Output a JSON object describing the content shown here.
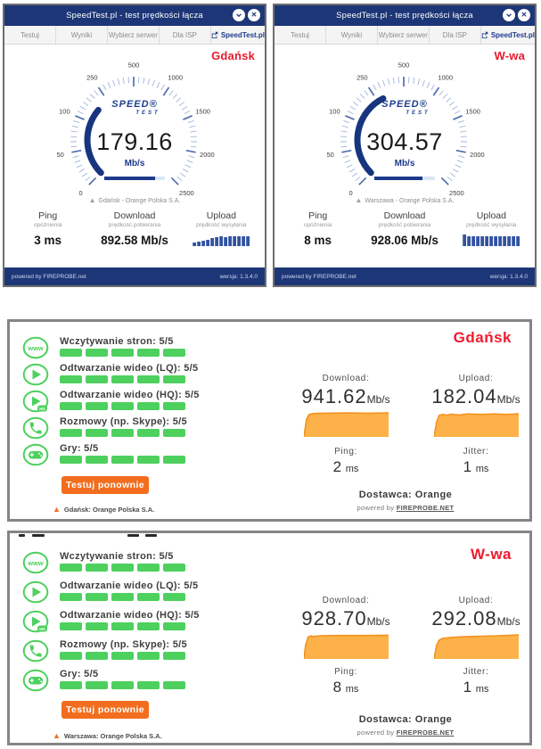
{
  "colors": {
    "navy": "#1d3677",
    "accent_navy": "#1d3a8c",
    "red": "#e8192c",
    "green": "#4dd05e",
    "orange": "#f26d1d",
    "chart_orange_fill": "#fcb249",
    "chart_orange_stroke": "#f39220"
  },
  "speedtest_windows": [
    {
      "title": "SpeedTest.pl - test prędkości łącza",
      "tabs": [
        "Testuj",
        "Wyniki",
        "Wybierz serwer",
        "Dla ISP",
        "SpeedTest.pl"
      ],
      "city_label": "Gdańsk",
      "logo_line1": "SPEED",
      "logo_line2": "TEST",
      "gauge": {
        "value": 179.16,
        "value_display": "179.16",
        "unit": "Mb/s",
        "labels": [
          0,
          50,
          100,
          250,
          500,
          1000,
          1500,
          2000,
          2500
        ],
        "progress_pct": 84
      },
      "server": "Gdańsk - Orange Polska S.A.",
      "stats": {
        "ping_label": "Ping",
        "ping_sub": "opóźnienia",
        "ping_value": "3 ms",
        "download_label": "Download",
        "download_sub": "prędkość pobierania",
        "download_value": "892.58 Mb/s",
        "upload_label": "Upload",
        "upload_sub": "prędkość wysyłania",
        "upload_bars": [
          4,
          5,
          6,
          7,
          9,
          10,
          11,
          10,
          11,
          11,
          11,
          11,
          11
        ]
      },
      "footer_left": "powered by FIREPROBE.net",
      "footer_right": "wersja: 1.3.4.0"
    },
    {
      "title": "SpeedTest.pl - test prędkości łącza",
      "tabs": [
        "Testuj",
        "Wyniki",
        "Wybierz serwer",
        "Dla ISP",
        "SpeedTest.pl"
      ],
      "city_label": "W-wa",
      "logo_line1": "SPEED",
      "logo_line2": "TEST",
      "gauge": {
        "value": 304.57,
        "value_display": "304.57",
        "unit": "Mb/s",
        "labels": [
          0,
          50,
          100,
          250,
          500,
          1000,
          1500,
          2000,
          2500
        ],
        "progress_pct": 80
      },
      "server": "Warszawa - Orange Polska S.A.",
      "stats": {
        "ping_label": "Ping",
        "ping_sub": "opóźnienia",
        "ping_value": "8 ms",
        "download_label": "Download",
        "download_sub": "prędkość pobierania",
        "download_value": "928.06 Mb/s",
        "upload_label": "Upload",
        "upload_sub": "prędkość wysyłania",
        "upload_bars": [
          13,
          11,
          11,
          11,
          11,
          11,
          11,
          11,
          11,
          11,
          11,
          11,
          11
        ]
      },
      "footer_left": "powered by FIREPROBE.net",
      "footer_right": "wersja: 1.3.4.0"
    }
  ],
  "fireprobe_panels": [
    {
      "city_label": "Gdańsk",
      "services": [
        {
          "icon": "www-icon",
          "label": "Wczytywanie stron: 5/5",
          "score": 5,
          "max": 5
        },
        {
          "icon": "play-icon",
          "label": "Odtwarzanie wideo (LQ): 5/5",
          "score": 5,
          "max": 5
        },
        {
          "icon": "play-hd-icon",
          "label": "Odtwarzanie wideo (HQ): 5/5",
          "score": 5,
          "max": 5
        },
        {
          "icon": "phone-icon",
          "label": "Rozmowy (np. Skype): 5/5",
          "score": 5,
          "max": 5
        },
        {
          "icon": "gamepad-icon",
          "label": "Gry: 5/5",
          "score": 5,
          "max": 5
        }
      ],
      "button_label": "Testuj ponownie",
      "server": "Gdańsk: Orange Polska S.A.",
      "download_label": "Download:",
      "download_value": "941.62",
      "upload_label": "Upload:",
      "upload_value": "182.04",
      "unit": "Mb/s",
      "ping_label": "Ping:",
      "ping_value": "2",
      "jitter_label": "Jitter:",
      "jitter_value": "1",
      "ms": "ms",
      "provider": "Dostawca: Orange",
      "powered_prefix": "powered by",
      "powered_link": "FIREPROBE.NET",
      "download_curve": [
        [
          0,
          0
        ],
        [
          3,
          70
        ],
        [
          6,
          90
        ],
        [
          12,
          94
        ],
        [
          25,
          95
        ],
        [
          50,
          96
        ],
        [
          75,
          95
        ],
        [
          100,
          96
        ]
      ],
      "upload_curve": [
        [
          0,
          0
        ],
        [
          3,
          60
        ],
        [
          6,
          86
        ],
        [
          10,
          90
        ],
        [
          15,
          87
        ],
        [
          20,
          91
        ],
        [
          30,
          88
        ],
        [
          40,
          92
        ],
        [
          55,
          90
        ],
        [
          70,
          92
        ],
        [
          85,
          90
        ],
        [
          100,
          93
        ]
      ]
    },
    {
      "city_label": "W-wa",
      "services": [
        {
          "icon": "www-icon",
          "label": "Wczytywanie stron: 5/5",
          "score": 5,
          "max": 5
        },
        {
          "icon": "play-icon",
          "label": "Odtwarzanie wideo (LQ): 5/5",
          "score": 5,
          "max": 5
        },
        {
          "icon": "play-hd-icon",
          "label": "Odtwarzanie wideo (HQ): 5/5",
          "score": 5,
          "max": 5
        },
        {
          "icon": "phone-icon",
          "label": "Rozmowy (np. Skype): 5/5",
          "score": 5,
          "max": 5
        },
        {
          "icon": "gamepad-icon",
          "label": "Gry: 5/5",
          "score": 5,
          "max": 5
        }
      ],
      "button_label": "Testuj ponownie",
      "server": "Warszawa: Orange Polska S.A.",
      "download_label": "Download:",
      "download_value": "928.70",
      "upload_label": "Upload:",
      "upload_value": "292.08",
      "unit": "Mb/s",
      "ping_label": "Ping:",
      "ping_value": "8",
      "jitter_label": "Jitter:",
      "jitter_value": "1",
      "ms": "ms",
      "provider": "Dostawca: Orange",
      "powered_prefix": "powered by",
      "powered_link": "FIREPROBE.NET",
      "download_curve": [
        [
          0,
          0
        ],
        [
          2,
          55
        ],
        [
          5,
          88
        ],
        [
          8,
          92
        ],
        [
          11,
          90
        ],
        [
          20,
          93
        ],
        [
          40,
          94
        ],
        [
          70,
          94
        ],
        [
          100,
          95
        ]
      ],
      "upload_curve": [
        [
          0,
          0
        ],
        [
          3,
          55
        ],
        [
          6,
          75
        ],
        [
          10,
          82
        ],
        [
          20,
          86
        ],
        [
          35,
          89
        ],
        [
          55,
          91
        ],
        [
          75,
          93
        ],
        [
          100,
          96
        ]
      ]
    }
  ]
}
